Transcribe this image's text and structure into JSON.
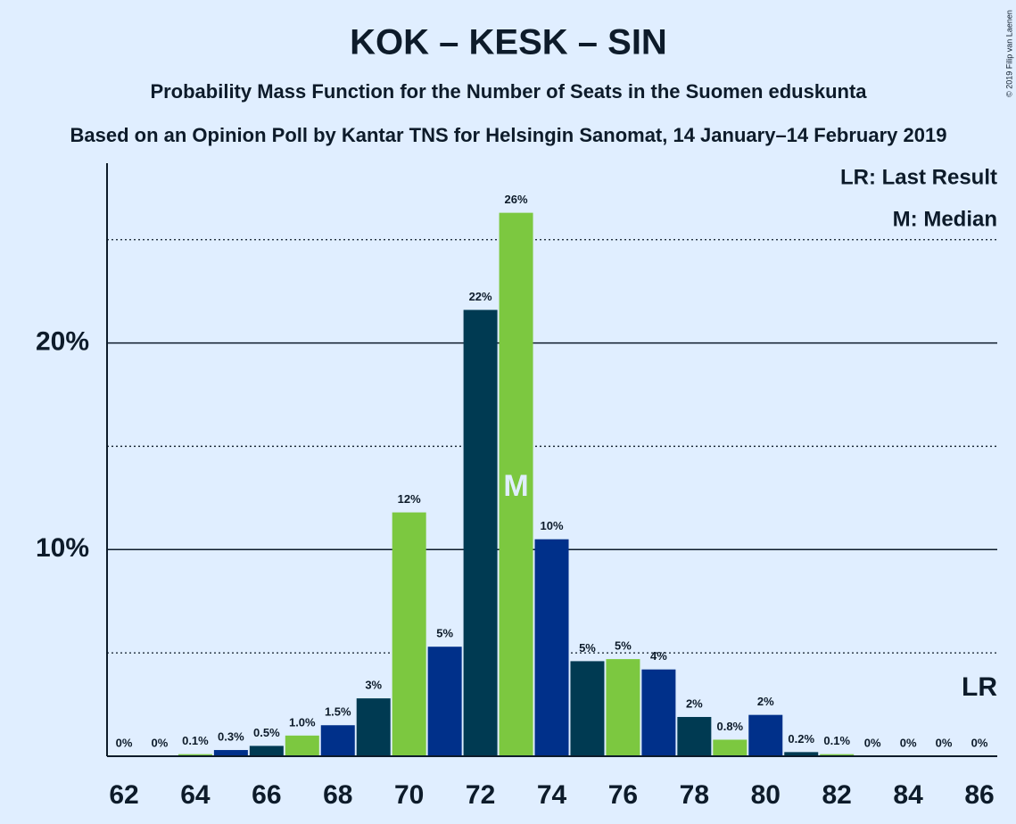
{
  "chart_data": {
    "type": "bar",
    "title": "KOK – KESK – SIN",
    "subtitle": "Probability Mass Function for the Number of Seats in the Suomen eduskunta",
    "caption": "Based on an Opinion Poll by Kantar TNS for Helsingin Sanomat, 14 January–14 February 2019",
    "copyright": "© 2019 Filip van Laenen",
    "categories": [
      62,
      null,
      64,
      null,
      66,
      null,
      68,
      null,
      70,
      null,
      72,
      null,
      74,
      null,
      76,
      null,
      78,
      null,
      80,
      null,
      82,
      null,
      84,
      null,
      86
    ],
    "values": [
      0,
      0,
      0.1,
      0.3,
      0.5,
      1.0,
      1.5,
      2.8,
      11.8,
      5.3,
      21.6,
      26.3,
      10.5,
      4.6,
      4.7,
      4.2,
      1.9,
      0.8,
      2.0,
      0.2,
      0.1,
      0,
      0,
      0,
      0
    ],
    "value_labels": [
      "0%",
      "0%",
      "0.1%",
      "0.3%",
      "0.5%",
      "1.0%",
      "1.5%",
      "3%",
      "12%",
      "5%",
      "22%",
      "26%",
      "10%",
      "5%",
      "5%",
      "4%",
      "2%",
      "0.8%",
      "2%",
      "0.2%",
      "0.1%",
      "0%",
      "0%",
      "0%",
      "0%"
    ],
    "colors": [
      "#00308a",
      "#003a52",
      "#7cc840",
      "#00308a",
      "#003a52",
      "#7cc840",
      "#00308a",
      "#003a52",
      "#7cc840",
      "#00308a",
      "#003a52",
      "#7cc840",
      "#00308a",
      "#003a52",
      "#7cc840",
      "#00308a",
      "#003a52",
      "#7cc840",
      "#00308a",
      "#003a52",
      "#7cc840",
      "#00308a",
      "#003a52",
      "#7cc840",
      "#00308a"
    ],
    "ylim": [
      0,
      28.7
    ],
    "yticks": [
      {
        "value": 10,
        "label": "10%"
      },
      {
        "value": 20,
        "label": "20%"
      }
    ],
    "minor_yticks": [
      5,
      15,
      25
    ],
    "median": {
      "index": 11,
      "label": "M"
    },
    "last_result": {
      "index": 24,
      "label": "LR"
    },
    "legend_notes": [
      "LR: Last Result",
      "M: Median"
    ]
  }
}
